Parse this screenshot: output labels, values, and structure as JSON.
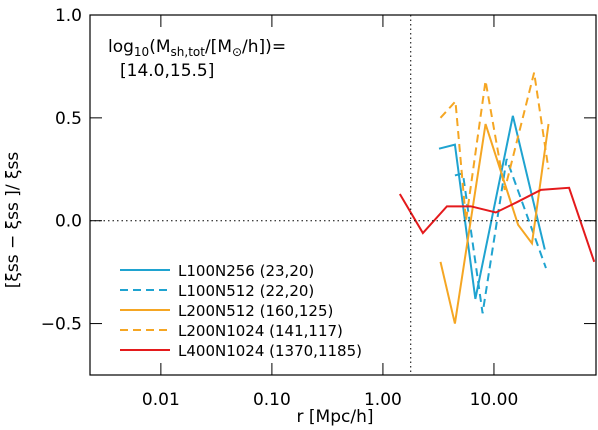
{
  "chart_data": {
    "type": "line",
    "xlabel": "r [Mpc/h]",
    "ylabel": "[ξss − ξss ]/ ξss",
    "annotation": [
      "log",
      "10",
      "(M",
      "sh,tot",
      "/[M",
      "⊙",
      "/h])="
    ],
    "annotation2": "[14.0,15.5]",
    "xscale": "log",
    "xlim": [
      0.0023,
      83
    ],
    "ylim": [
      -0.75,
      1.0
    ],
    "xticks": [
      {
        "value": 0.01,
        "label": "0.01"
      },
      {
        "value": 0.1,
        "label": "0.10"
      },
      {
        "value": 1,
        "label": "1.00"
      },
      {
        "value": 10,
        "label": "10.00"
      }
    ],
    "yticks": [
      {
        "value": -0.5,
        "label": "−0.5"
      },
      {
        "value": 0,
        "label": "0.0"
      },
      {
        "value": 0.5,
        "label": "0.5"
      },
      {
        "value": 1.0,
        "label": "1.0"
      }
    ],
    "vline": 1.78,
    "hline": 0,
    "legend": "lower left",
    "series": [
      {
        "name": "L100N256 (23,20)",
        "color": "#1fa3d0",
        "dashed": false,
        "x": [
          3.2,
          4.45,
          6.8,
          14.8,
          28.7
        ],
        "values": [
          0.35,
          0.37,
          -0.38,
          0.51,
          -0.14
        ]
      },
      {
        "name": "L100N512 (22,20)",
        "color": "#1fa3d0",
        "dashed": true,
        "x": [
          4.45,
          5.25,
          7.9,
          13.0,
          29.4
        ],
        "values": [
          0.22,
          0.23,
          -0.45,
          0.3,
          -0.23
        ]
      },
      {
        "name": "L200N512 (160,125)",
        "color": "#f5a623",
        "dashed": false,
        "x": [
          3.3,
          4.45,
          8.4,
          16.5,
          22.0,
          31.0
        ],
        "values": [
          -0.2,
          -0.5,
          0.47,
          -0.02,
          -0.11,
          0.47
        ]
      },
      {
        "name": "L200N1024 (141,117)",
        "color": "#f5a623",
        "dashed": true,
        "x": [
          3.3,
          4.5,
          5.6,
          8.4,
          12.5,
          23.0,
          31.0
        ],
        "values": [
          0.5,
          0.58,
          0.0,
          0.68,
          0.15,
          0.72,
          0.25
        ]
      },
      {
        "name": "L400N1024 (1370,1185)",
        "color": "#e41a1c",
        "dashed": false,
        "x": [
          1.42,
          2.29,
          3.77,
          6.2,
          10.4,
          16.1,
          26.5,
          47.5,
          80
        ],
        "values": [
          0.13,
          -0.06,
          0.07,
          0.07,
          0.04,
          0.09,
          0.15,
          0.16,
          -0.2
        ]
      }
    ]
  }
}
